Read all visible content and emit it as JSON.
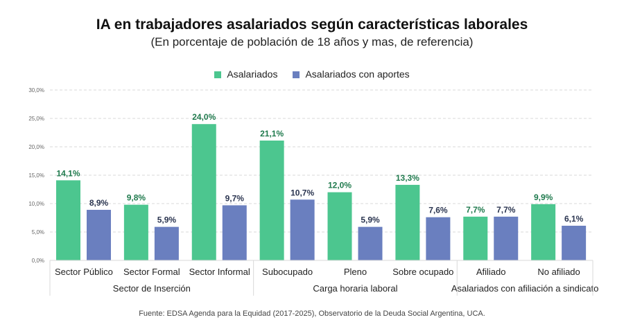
{
  "chart_data": {
    "type": "bar",
    "title": "IA en trabajadores asalariados según características laborales",
    "subtitle": "(En porcentaje de población de 18 años y mas, de referencia)",
    "categories": [
      "Sector Público",
      "Sector Formal",
      "Sector Informal",
      "Subocupado",
      "Pleno",
      "Sobre ocupado",
      "Afiliado",
      "No afiliado"
    ],
    "groups": [
      {
        "label": "Sector de Inserción",
        "categories": [
          "Sector Público",
          "Sector Formal",
          "Sector Informal"
        ]
      },
      {
        "label": "Carga horaria laboral",
        "categories": [
          "Subocupado",
          "Pleno",
          "Sobre ocupado"
        ]
      },
      {
        "label": "Asalariados con afiliación a sindicato",
        "categories": [
          "Afiliado",
          "No afiliado"
        ]
      }
    ],
    "series": [
      {
        "name": "Asalariados",
        "color": "#4cc68f",
        "label_color": "#1f7a4d",
        "values": [
          14.1,
          9.8,
          24.0,
          21.1,
          12.0,
          13.3,
          7.7,
          9.9
        ],
        "labels": [
          "14,1%",
          "9,8%",
          "24,0%",
          "21,1%",
          "12,0%",
          "13,3%",
          "7,7%",
          "9,9%"
        ]
      },
      {
        "name": "Asalariados con aportes",
        "color": "#6a7fbf",
        "label_color": "#2b3550",
        "values": [
          8.9,
          5.9,
          9.7,
          10.7,
          5.9,
          7.6,
          7.7,
          6.1
        ],
        "labels": [
          "8,9%",
          "5,9%",
          "9,7%",
          "10,7%",
          "5,9%",
          "7,6%",
          "7,7%",
          "6,1%"
        ]
      }
    ],
    "yticks": [
      "0,0%",
      "5,0%",
      "10,0%",
      "15,0%",
      "20,0%",
      "25,0%",
      "30,0%"
    ],
    "ylim": [
      0,
      30
    ],
    "grid": true,
    "legend_position": "top",
    "source": "Fuente: EDSA Agenda para la Equidad (2017-2025), Observatorio de la Deuda Social Argentina, UCA."
  }
}
